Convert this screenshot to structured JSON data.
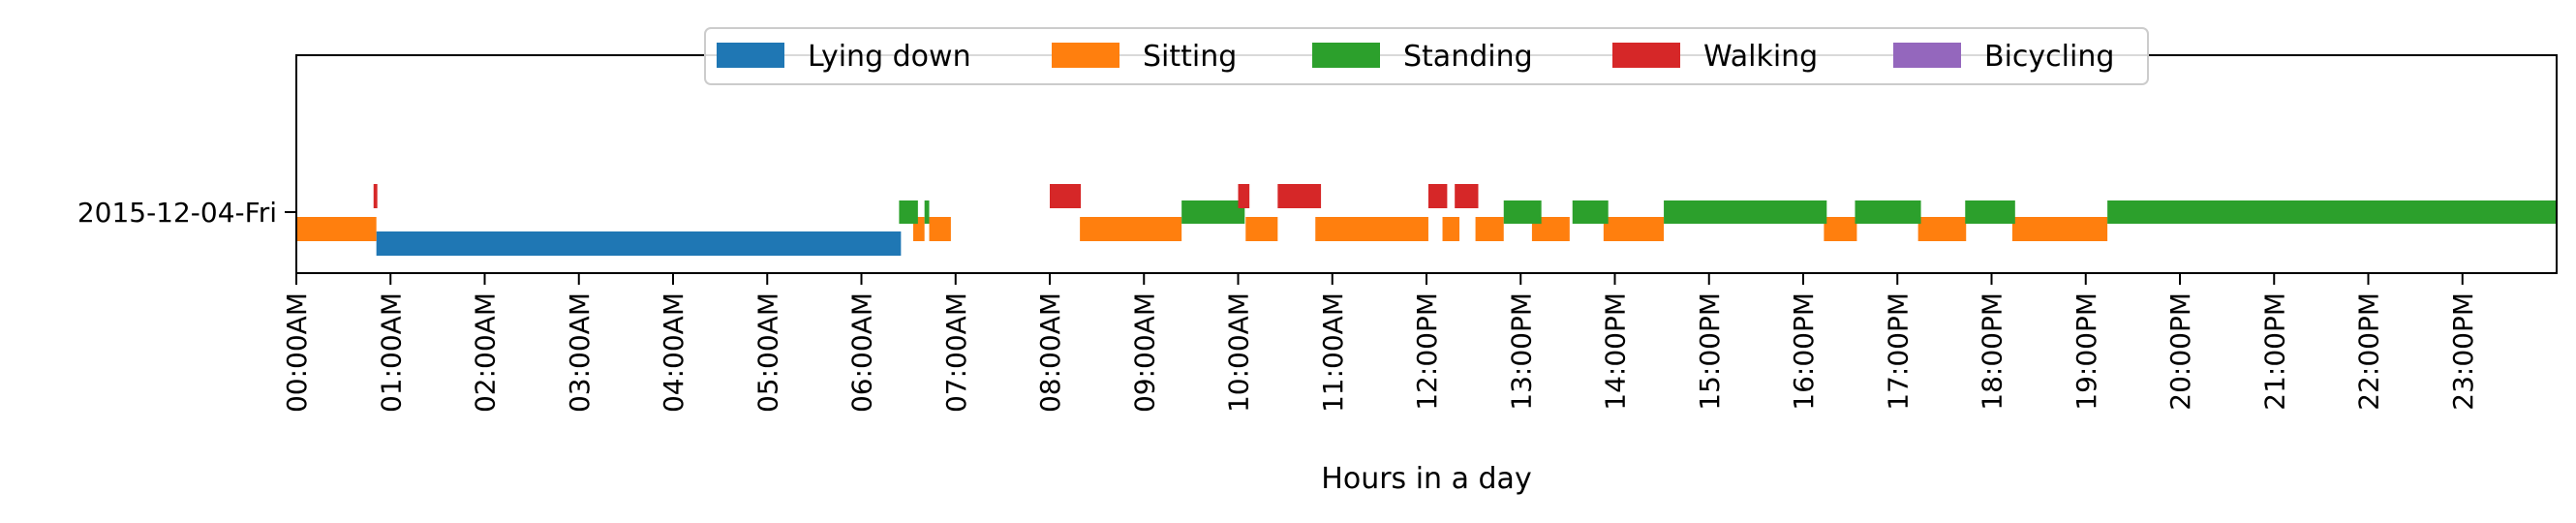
{
  "chart_data": {
    "type": "timeline",
    "xlabel": "Hours in a day",
    "row_label": "2015-12-04-Fri",
    "xlim": [
      0,
      24
    ],
    "x_tick_labels": [
      "00:00AM",
      "01:00AM",
      "02:00AM",
      "03:00AM",
      "04:00AM",
      "05:00AM",
      "06:00AM",
      "07:00AM",
      "08:00AM",
      "09:00AM",
      "10:00AM",
      "11:00AM",
      "12:00PM",
      "13:00PM",
      "14:00PM",
      "15:00PM",
      "16:00PM",
      "17:00PM",
      "18:00PM",
      "19:00PM",
      "20:00PM",
      "21:00PM",
      "22:00PM",
      "23:00PM"
    ],
    "legend_position": "top-center",
    "grid": false,
    "series": [
      {
        "name": "Lying down",
        "color": "#1f77b4",
        "intervals": [
          [
            0.85,
            6.42
          ]
        ]
      },
      {
        "name": "Sitting",
        "color": "#ff7f0e",
        "intervals": [
          [
            0.0,
            0.85
          ],
          [
            6.55,
            6.67
          ],
          [
            6.72,
            6.95
          ],
          [
            8.32,
            9.4
          ],
          [
            10.08,
            10.42
          ],
          [
            10.82,
            12.02
          ],
          [
            12.17,
            12.35
          ],
          [
            12.52,
            12.82
          ],
          [
            13.12,
            13.52
          ],
          [
            13.88,
            14.52
          ],
          [
            16.22,
            16.57
          ],
          [
            17.22,
            17.73
          ],
          [
            18.22,
            19.23
          ]
        ]
      },
      {
        "name": "Standing",
        "color": "#2ca02c",
        "intervals": [
          [
            6.4,
            6.6
          ],
          [
            6.67,
            6.72
          ],
          [
            9.4,
            10.07
          ],
          [
            12.82,
            13.22
          ],
          [
            13.55,
            13.93
          ],
          [
            14.52,
            16.25
          ],
          [
            16.55,
            17.25
          ],
          [
            17.72,
            18.25
          ],
          [
            19.23,
            24.0
          ]
        ]
      },
      {
        "name": "Walking",
        "color": "#d62728",
        "intervals": [
          [
            0.82,
            0.86
          ],
          [
            8.0,
            8.33
          ],
          [
            10.0,
            10.12
          ],
          [
            10.42,
            10.88
          ],
          [
            12.02,
            12.22
          ],
          [
            12.3,
            12.55
          ]
        ]
      },
      {
        "name": "Bicycling",
        "color": "#9467bd",
        "intervals": []
      }
    ]
  }
}
